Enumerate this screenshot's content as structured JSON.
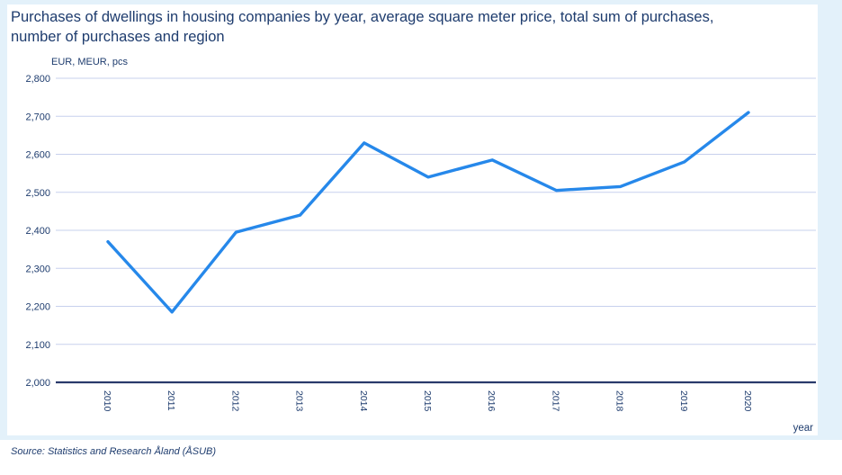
{
  "page": {
    "title": "Purchases of dwellings in housing companies by year, average square meter price, total sum of purchases,\nnumber of purchases and region",
    "units_label": "EUR, MEUR, pcs",
    "x_axis_title": "year",
    "source": "Source: Statistics and Research Åland (ÅSUB)"
  },
  "chart_data": {
    "type": "line",
    "title": "Purchases of dwellings in housing companies by year, average square meter price, total sum of purchases, number of purchases and region",
    "xlabel": "year",
    "ylabel": "EUR, MEUR, pcs",
    "categories": [
      "2010",
      "2011",
      "2012",
      "2013",
      "2014",
      "2015",
      "2016",
      "2017",
      "2018",
      "2019",
      "2020"
    ],
    "values": [
      2370,
      2185,
      2395,
      2440,
      2630,
      2540,
      2585,
      2505,
      2515,
      2580,
      2710
    ],
    "ylim": [
      2000,
      2800
    ],
    "ytick_step": 100,
    "grid": true,
    "legend": false
  },
  "colors": {
    "frame_bg": "#e3f1fa",
    "panel_bg": "#ffffff",
    "text": "#1e3c6e",
    "grid": "#c7d0ed",
    "axis": "#2a3a6b",
    "line": "#2688ea"
  }
}
